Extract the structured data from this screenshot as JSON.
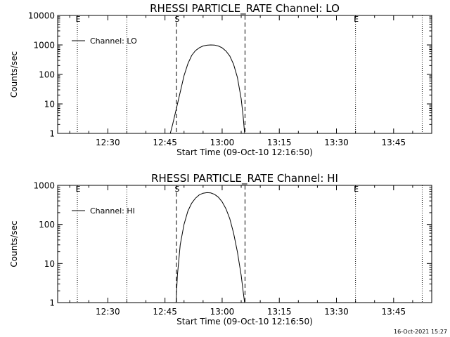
{
  "chart_data": [
    {
      "type": "line",
      "title": "RHESSI PARTICLE_RATE Channel: LO",
      "xlabel": "Start Time (09-Oct-10 12:16:50)",
      "ylabel": "Counts/sec",
      "yscale": "log",
      "xlim": [
        "12:16:50",
        "13:55:00"
      ],
      "ylim": [
        1,
        10000
      ],
      "xticks": [
        "12:30",
        "12:45",
        "13:00",
        "13:15",
        "13:30",
        "13:45"
      ],
      "yticks": [
        "1",
        "10",
        "100",
        "1000",
        "10000"
      ],
      "legend_position": "top-left",
      "markers": [
        {
          "label": "E",
          "time": "12:22:00",
          "style": "dotted"
        },
        {
          "label": "",
          "time": "12:35:00",
          "style": "dotted"
        },
        {
          "label": "S",
          "time": "12:48:00",
          "style": "dashed"
        },
        {
          "label": "",
          "time": "13:06:00",
          "style": "dashed"
        },
        {
          "label": "E",
          "time": "13:35:00",
          "style": "dotted"
        },
        {
          "label": "",
          "time": "13:52:30",
          "style": "dotted"
        }
      ],
      "series": [
        {
          "name": "Channel: LO",
          "x": [
            "12:46:24",
            "12:47:00",
            "12:48:00",
            "12:49:00",
            "12:50:00",
            "12:51:00",
            "12:52:00",
            "12:53:00",
            "12:54:00",
            "12:55:00",
            "12:56:00",
            "12:57:00",
            "12:58:00",
            "12:59:00",
            "13:00:00",
            "13:01:00",
            "13:02:00",
            "13:03:00",
            "13:04:00",
            "13:05:00",
            "13:05:30",
            "13:05:54"
          ],
          "y": [
            1,
            2,
            7,
            25,
            90,
            230,
            440,
            640,
            800,
            920,
            980,
            1000,
            990,
            920,
            800,
            620,
            420,
            220,
            80,
            15,
            4,
            1
          ]
        }
      ]
    },
    {
      "type": "line",
      "title": "RHESSI PARTICLE_RATE Channel: HI",
      "xlabel": "Start Time (09-Oct-10 12:16:50)",
      "ylabel": "Counts/sec",
      "yscale": "log",
      "xlim": [
        "12:16:50",
        "13:55:00"
      ],
      "ylim": [
        1,
        1000
      ],
      "xticks": [
        "12:30",
        "12:45",
        "13:00",
        "13:15",
        "13:30",
        "13:45"
      ],
      "yticks": [
        "1",
        "10",
        "100",
        "1000"
      ],
      "legend_position": "top-left",
      "markers": [
        {
          "label": "E",
          "time": "12:22:00",
          "style": "dotted"
        },
        {
          "label": "",
          "time": "12:35:00",
          "style": "dotted"
        },
        {
          "label": "S",
          "time": "12:48:00",
          "style": "dashed"
        },
        {
          "label": "",
          "time": "13:06:00",
          "style": "dashed"
        },
        {
          "label": "E",
          "time": "13:35:00",
          "style": "dotted"
        },
        {
          "label": "",
          "time": "13:52:30",
          "style": "dotted"
        }
      ],
      "series": [
        {
          "name": "Channel: HI",
          "x": [
            "12:47:54",
            "12:48:15",
            "12:49:00",
            "12:50:00",
            "12:51:00",
            "12:52:00",
            "12:53:00",
            "12:54:00",
            "12:55:00",
            "12:56:00",
            "12:57:00",
            "12:58:00",
            "12:59:00",
            "13:00:00",
            "13:01:00",
            "13:02:00",
            "13:03:00",
            "13:04:00",
            "13:05:00",
            "13:05:30",
            "13:05:54"
          ],
          "y": [
            1,
            5,
            30,
            100,
            220,
            350,
            470,
            570,
            630,
            650,
            640,
            590,
            500,
            380,
            250,
            140,
            60,
            20,
            5,
            2,
            1
          ]
        }
      ]
    }
  ],
  "footer": {
    "timestamp": "16-Oct-2021 15:27"
  }
}
